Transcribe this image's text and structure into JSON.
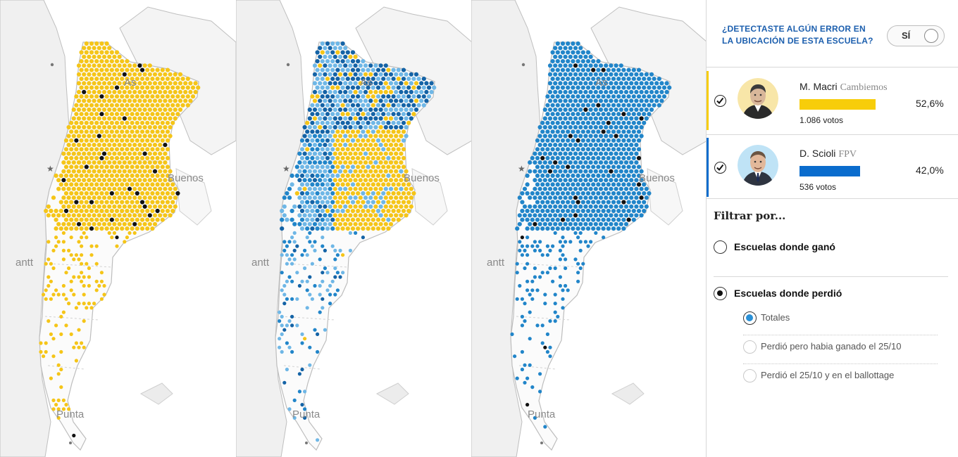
{
  "maps": [
    {
      "id": "macri",
      "labels": {
        "as": "As",
        "buenos": "Buenos",
        "punta": "Punta",
        "antt": "antt"
      }
    },
    {
      "id": "mixed",
      "labels": {
        "as": "As",
        "buenos": "Buenos",
        "punta": "Punta",
        "antt": "antt"
      }
    },
    {
      "id": "scioli",
      "labels": {
        "as": "As",
        "buenos": "Buenos",
        "punta": "Punta",
        "antt": "antt"
      }
    }
  ],
  "colors": {
    "macri": "#f5c518",
    "macri_bar": "#f7cd0a",
    "scioli": "#2185c9",
    "scioli_bar": "#0a6ccd",
    "light_blue": "#6fb7e6",
    "dark_blue": "#1463a6",
    "black": "#111111",
    "accent_link": "#1c5fae"
  },
  "sidebar": {
    "report_question": "¿DETECTASTE ALGÚN ERROR EN LA UBICACIÓN DE ESTA ESCUELA?",
    "toggle_label": "SÍ",
    "candidates": [
      {
        "name": "M. Macri",
        "party": "Cambiemos",
        "percent": "52,6%",
        "percent_value": 52.6,
        "votes": "1.086 votos",
        "checked": true,
        "accent": "#f7cd0a",
        "avatar_icon": "man-portrait-icon"
      },
      {
        "name": "D. Scioli",
        "party": "FPV",
        "percent": "42,0%",
        "percent_value": 42.0,
        "votes": "536 votos",
        "checked": true,
        "accent": "#0a6ccd",
        "avatar_icon": "man-portrait-icon"
      }
    ],
    "filter_title": "Filtrar por...",
    "filter_options": [
      {
        "label": "Escuelas donde ganó",
        "selected": false
      },
      {
        "label": "Escuelas donde perdió",
        "selected": true
      }
    ],
    "sub_options": [
      {
        "label": "Totales",
        "selected": true
      },
      {
        "label": "Perdió pero habia ganado el 25/10",
        "selected": false
      },
      {
        "label": "Perdió el 25/10 y en el ballottage",
        "selected": false
      }
    ]
  }
}
